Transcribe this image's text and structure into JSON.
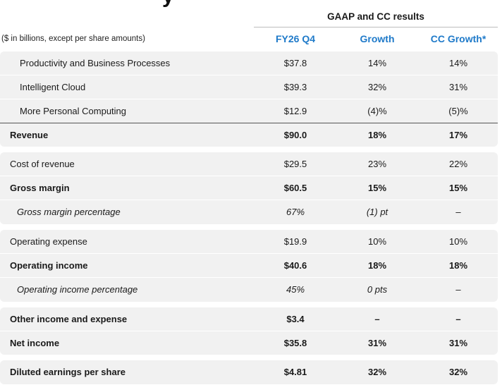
{
  "header": {
    "title": "y",
    "group_label": "GAAP and CC results",
    "units_note": "($ in billions, except per share amounts)",
    "columns": [
      "FY26 Q4",
      "Growth",
      "CC Growth*"
    ]
  },
  "rows": [
    {
      "label": "Productivity and Business Processes",
      "values": [
        "$37.8",
        "14%",
        "14%"
      ]
    },
    {
      "label": "Intelligent Cloud",
      "values": [
        "$39.3",
        "32%",
        "31%"
      ]
    },
    {
      "label": "More Personal Computing",
      "values": [
        "$12.9",
        "(4)%",
        "(5)%"
      ]
    },
    {
      "label": "Revenue",
      "values": [
        "$90.0",
        "18%",
        "17%"
      ]
    },
    {
      "label": "Cost of revenue",
      "values": [
        "$29.5",
        "23%",
        "22%"
      ]
    },
    {
      "label": "Gross margin",
      "values": [
        "$60.5",
        "15%",
        "15%"
      ]
    },
    {
      "label": "Gross margin percentage",
      "values": [
        "67%",
        "(1) pt",
        "–"
      ]
    },
    {
      "label": "Operating expense",
      "values": [
        "$19.9",
        "10%",
        "10%"
      ]
    },
    {
      "label": "Operating income",
      "values": [
        "$40.6",
        "18%",
        "18%"
      ]
    },
    {
      "label": "Operating income percentage",
      "values": [
        "45%",
        "0 pts",
        "–"
      ]
    },
    {
      "label": "Other income and expense",
      "values": [
        "$3.4",
        "–",
        "–"
      ]
    },
    {
      "label": "Net income",
      "values": [
        "$35.8",
        "31%",
        "31%"
      ]
    },
    {
      "label": "Diluted earnings per share",
      "values": [
        "$4.81",
        "32%",
        "32%"
      ]
    }
  ]
}
